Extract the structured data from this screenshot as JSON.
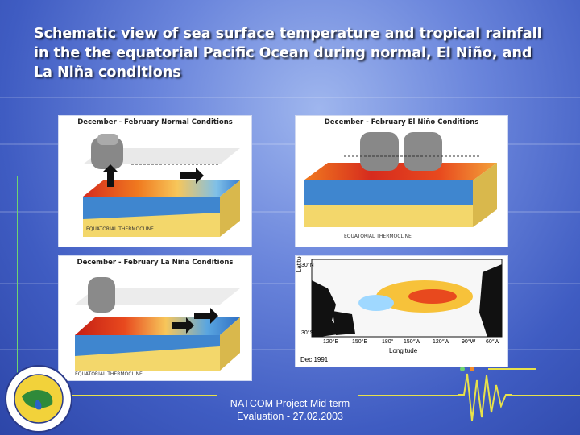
{
  "slide": {
    "title": "Schematic view of sea surface temperature and tropical rainfall in the the equatorial Pacific Ocean during normal, El Niño, and La Niña conditions",
    "footer_line1": "NATCOM Project Mid-term",
    "footer_line2": "Evaluation - 27.02.2003"
  },
  "panels": {
    "normal": {
      "title": "December - February Normal Conditions",
      "thermocline": "EQUATORIAL THERMOCLINE"
    },
    "elnino": {
      "title": "December - February El Niño Conditions",
      "thermocline": "EQUATORIAL THERMOCLINE"
    },
    "lanina": {
      "title": "December - February La Niña Conditions",
      "thermocline": "EQUATORIAL THERMOCLINE"
    }
  },
  "map": {
    "ylabel": "Latitude",
    "xlabel": "Longitude",
    "lat_ticks": [
      "30°N",
      "30°S"
    ],
    "lon_ticks": [
      "120°E",
      "150°E",
      "180°",
      "150°W",
      "120°W",
      "90°W",
      "60°W"
    ],
    "date_label": "Dec 1991"
  },
  "logo": {
    "icon": "organization-seal-icon"
  },
  "colors": {
    "accent_line": "#e8e24a",
    "vertical_rule": "#6fd46f",
    "title_text": "#ffffff"
  }
}
